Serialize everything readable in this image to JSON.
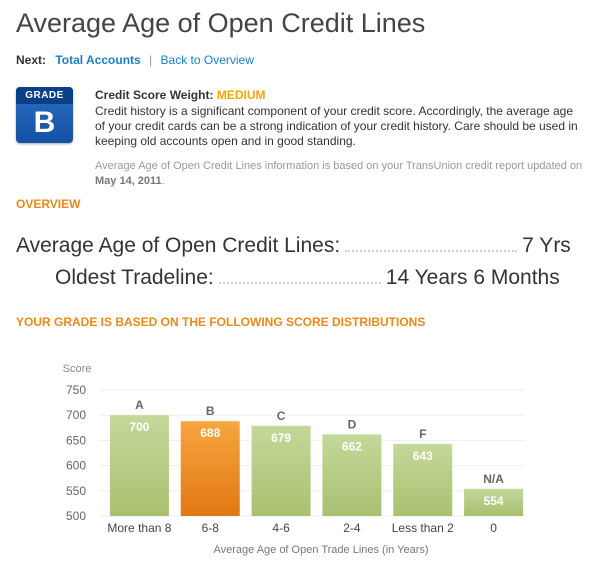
{
  "page": {
    "title": "Average Age of Open Credit Lines",
    "nav": {
      "next_label": "Next:",
      "links": [
        {
          "label": "Total Accounts"
        },
        {
          "label": "Back to Overview"
        }
      ]
    }
  },
  "grade": {
    "label": "GRADE",
    "value": "B"
  },
  "info": {
    "weight_label": "Credit Score Weight:",
    "weight_value": "MEDIUM",
    "description": "Credit history is a significant component of your credit score. Accordingly, the average age of your credit cards can be a strong indication of your credit history. Care should be used in keeping old accounts open and in good standing.",
    "source_text": "Average Age of Open Credit Lines information is based on your TransUnion credit report updated on",
    "source_date": "May 14, 2011",
    "source_suffix": "."
  },
  "overview": {
    "heading": "OVERVIEW",
    "rows": [
      {
        "label": "Average Age of Open Credit Lines:",
        "value": "7 Yrs"
      },
      {
        "label": "Oldest Tradeline:",
        "value": "14 Years 6 Months"
      }
    ]
  },
  "distribution_heading": "YOUR GRADE IS BASED ON THE FOLLOWING SCORE DISTRIBUTIONS",
  "colors": {
    "bar_green": "#b9cf8a",
    "bar_orange": "#f29a2e",
    "grade_blue": "#1e63b6",
    "accent_orange": "#e88a1a",
    "link_blue": "#1a7fc1"
  },
  "chart_data": {
    "type": "bar",
    "ylabel": "Score",
    "xlabel": "Average Age of Open Trade Lines (in Years)",
    "ylim": [
      500,
      750
    ],
    "yticks": [
      750,
      700,
      650,
      600,
      550,
      500
    ],
    "categories": [
      "More than 8",
      "6-8",
      "4-6",
      "2-4",
      "Less than 2",
      "0"
    ],
    "grades": [
      "A",
      "B",
      "C",
      "D",
      "F",
      "N/A"
    ],
    "values": [
      700,
      688,
      679,
      662,
      643,
      554
    ],
    "highlight_index": 1
  }
}
